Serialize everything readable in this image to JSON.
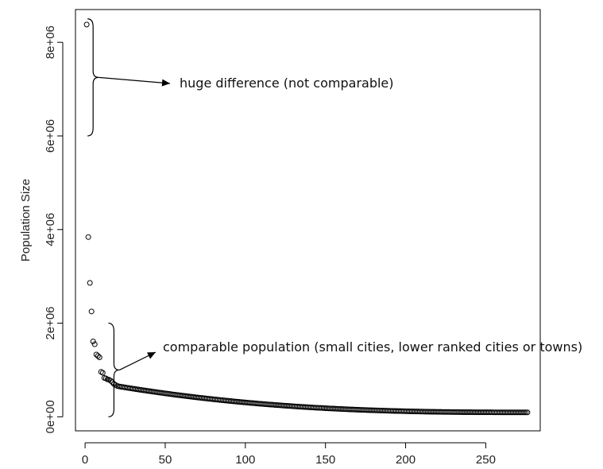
{
  "chart_data": {
    "type": "scatter",
    "title": "",
    "xlabel": "",
    "ylabel": "Population Size",
    "xlim": [
      -6,
      284
    ],
    "ylim": [
      -300000,
      8700000
    ],
    "x_ticks": [
      {
        "value": 0,
        "label": "0"
      },
      {
        "value": 50,
        "label": "50"
      },
      {
        "value": 100,
        "label": "100"
      },
      {
        "value": 150,
        "label": "150"
      },
      {
        "value": 200,
        "label": "200"
      },
      {
        "value": 250,
        "label": "250"
      }
    ],
    "y_ticks": [
      {
        "value": 0,
        "label": "0e+00"
      },
      {
        "value": 2000000,
        "label": "2e+06"
      },
      {
        "value": 4000000,
        "label": "4e+06"
      },
      {
        "value": 6000000,
        "label": "6e+06"
      },
      {
        "value": 8000000,
        "label": "8e+06"
      }
    ],
    "grid": false,
    "marker": "open-circle",
    "series": [
      {
        "rank_range": [
          1,
          276
        ],
        "points": [
          [
            1,
            8380000
          ],
          [
            2,
            3840000
          ],
          [
            3,
            2860000
          ],
          [
            4,
            2250000
          ],
          [
            5,
            1610000
          ],
          [
            6,
            1550000
          ],
          [
            7,
            1330000
          ],
          [
            8,
            1300000
          ],
          [
            9,
            1270000
          ],
          [
            10,
            960000
          ],
          [
            11,
            940000
          ],
          [
            12,
            830000
          ],
          [
            13,
            820000
          ],
          [
            14,
            800000
          ],
          [
            15,
            790000
          ],
          [
            16,
            770000
          ],
          [
            17,
            740000
          ],
          [
            18,
            700000
          ],
          [
            19,
            680000
          ],
          [
            20,
            660000
          ]
        ],
        "tail_decay": {
          "from_rank": 21,
          "to_rank": 276,
          "start_value": 650000,
          "end_value": 95000
        }
      }
    ],
    "annotations": [
      {
        "text": "huge difference (not comparable)",
        "brace_y_range": [
          6000000,
          8500000
        ],
        "brace_x": 5
      },
      {
        "text": "comparable population (small cities, lower ranked cities or towns)",
        "brace_y_range": [
          0,
          2000000
        ],
        "brace_x": 18
      }
    ]
  }
}
